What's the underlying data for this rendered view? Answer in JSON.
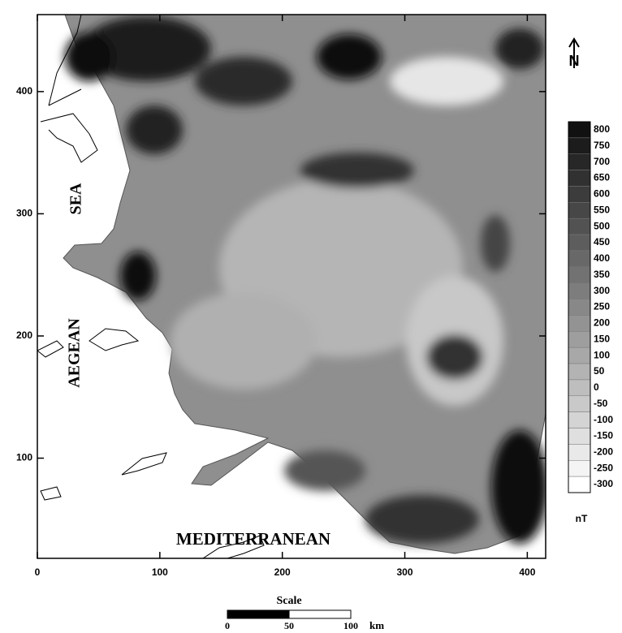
{
  "map": {
    "xlim": [
      0,
      415
    ],
    "ylim": [
      18,
      463
    ],
    "xticks": [
      0,
      100,
      200,
      300,
      400
    ],
    "yticks": [
      100,
      200,
      300,
      400
    ]
  },
  "colorbar": {
    "levels": [
      800,
      750,
      700,
      650,
      600,
      550,
      500,
      450,
      400,
      350,
      300,
      250,
      200,
      150,
      100,
      50,
      0,
      -50,
      -100,
      -150,
      -200,
      -250,
      -300
    ],
    "unit": "nT"
  },
  "labels": {
    "sea": "SEA",
    "aegean": "AEGEAN",
    "mediterranean": "MEDITERRANEAN"
  },
  "north": "N",
  "scale": {
    "title": "Scale",
    "ticks": [
      0,
      50,
      100
    ],
    "unit": "km"
  }
}
